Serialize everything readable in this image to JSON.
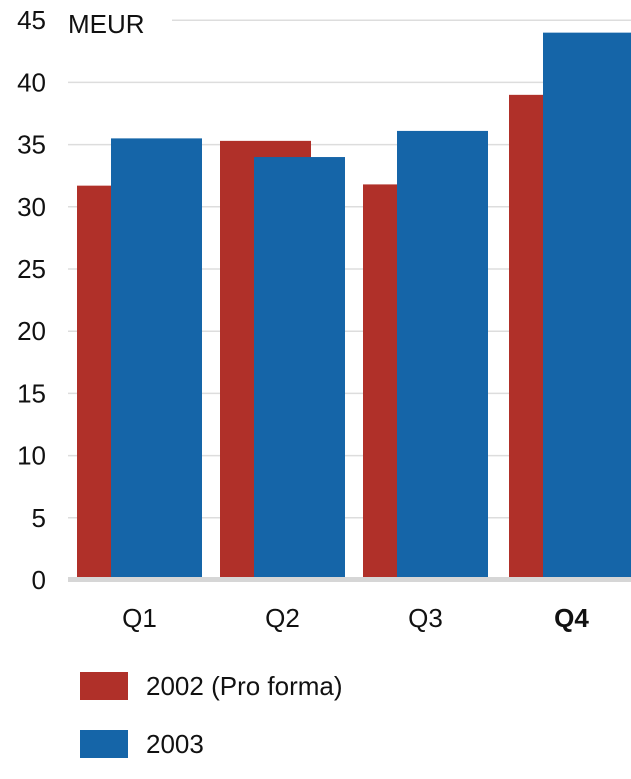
{
  "chart_data": {
    "type": "bar",
    "unit_label": "MEUR",
    "categories": [
      "Q1",
      "Q2",
      "Q3",
      "Q4"
    ],
    "highlight_category": "Q4",
    "series": [
      {
        "name": "2002 (Pro forma)",
        "color": "#b03029",
        "values": [
          31.7,
          35.3,
          31.8,
          39.0
        ]
      },
      {
        "name": "2003",
        "color": "#1565a8",
        "values": [
          35.5,
          34.0,
          36.1,
          44.0
        ]
      }
    ],
    "y_ticks": [
      "0",
      "5",
      "10",
      "15",
      "20",
      "25",
      "30",
      "35",
      "40",
      "45"
    ],
    "ylim": [
      0,
      45
    ],
    "grid": true,
    "legend_position": "bottom-left"
  }
}
